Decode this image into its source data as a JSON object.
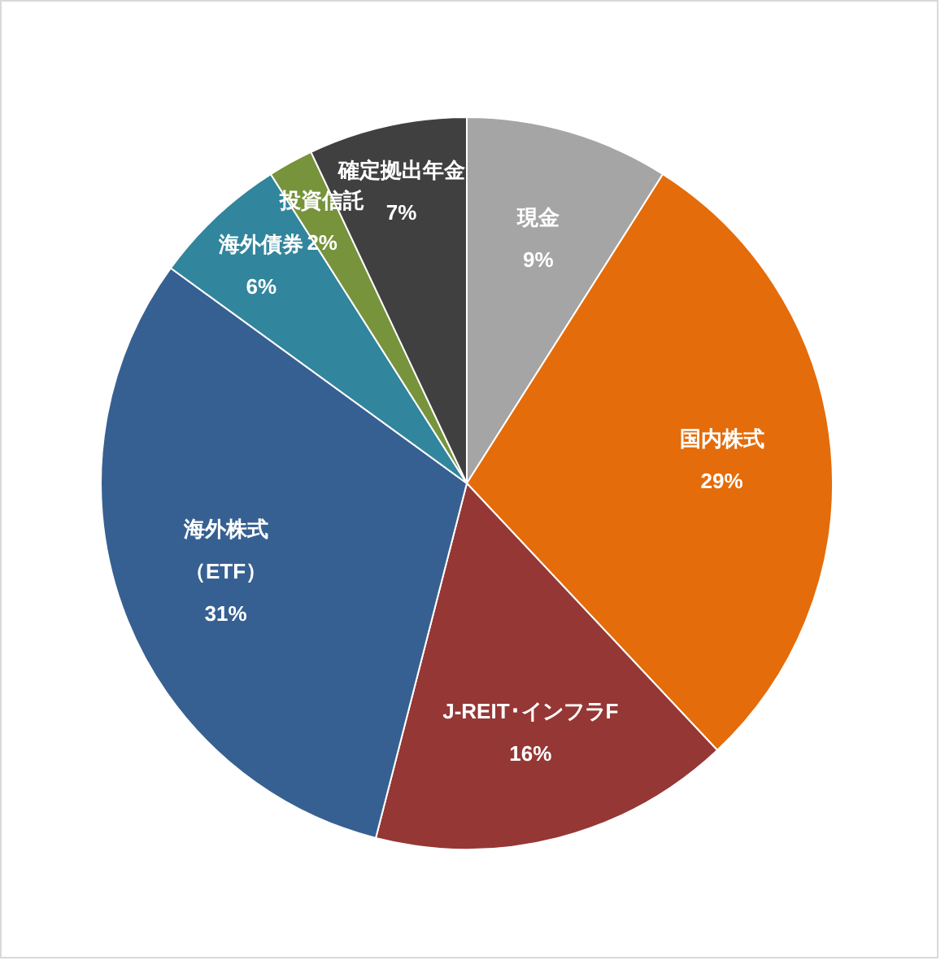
{
  "chart_data": {
    "type": "pie",
    "categories": [
      "現金",
      "国内株式",
      "J-REIT･インフラF",
      "海外株式（ETF）",
      "海外債券",
      "投資信託",
      "確定拠出年金"
    ],
    "values": [
      9,
      29,
      16,
      31,
      6,
      2,
      7
    ],
    "value_labels": [
      "9%",
      "29%",
      "16%",
      "31%",
      "6%",
      "2%",
      "7%"
    ],
    "colors": [
      "#a5a5a5",
      "#e46c0a",
      "#953735",
      "#376092",
      "#31859c",
      "#77933c",
      "#404040"
    ]
  }
}
